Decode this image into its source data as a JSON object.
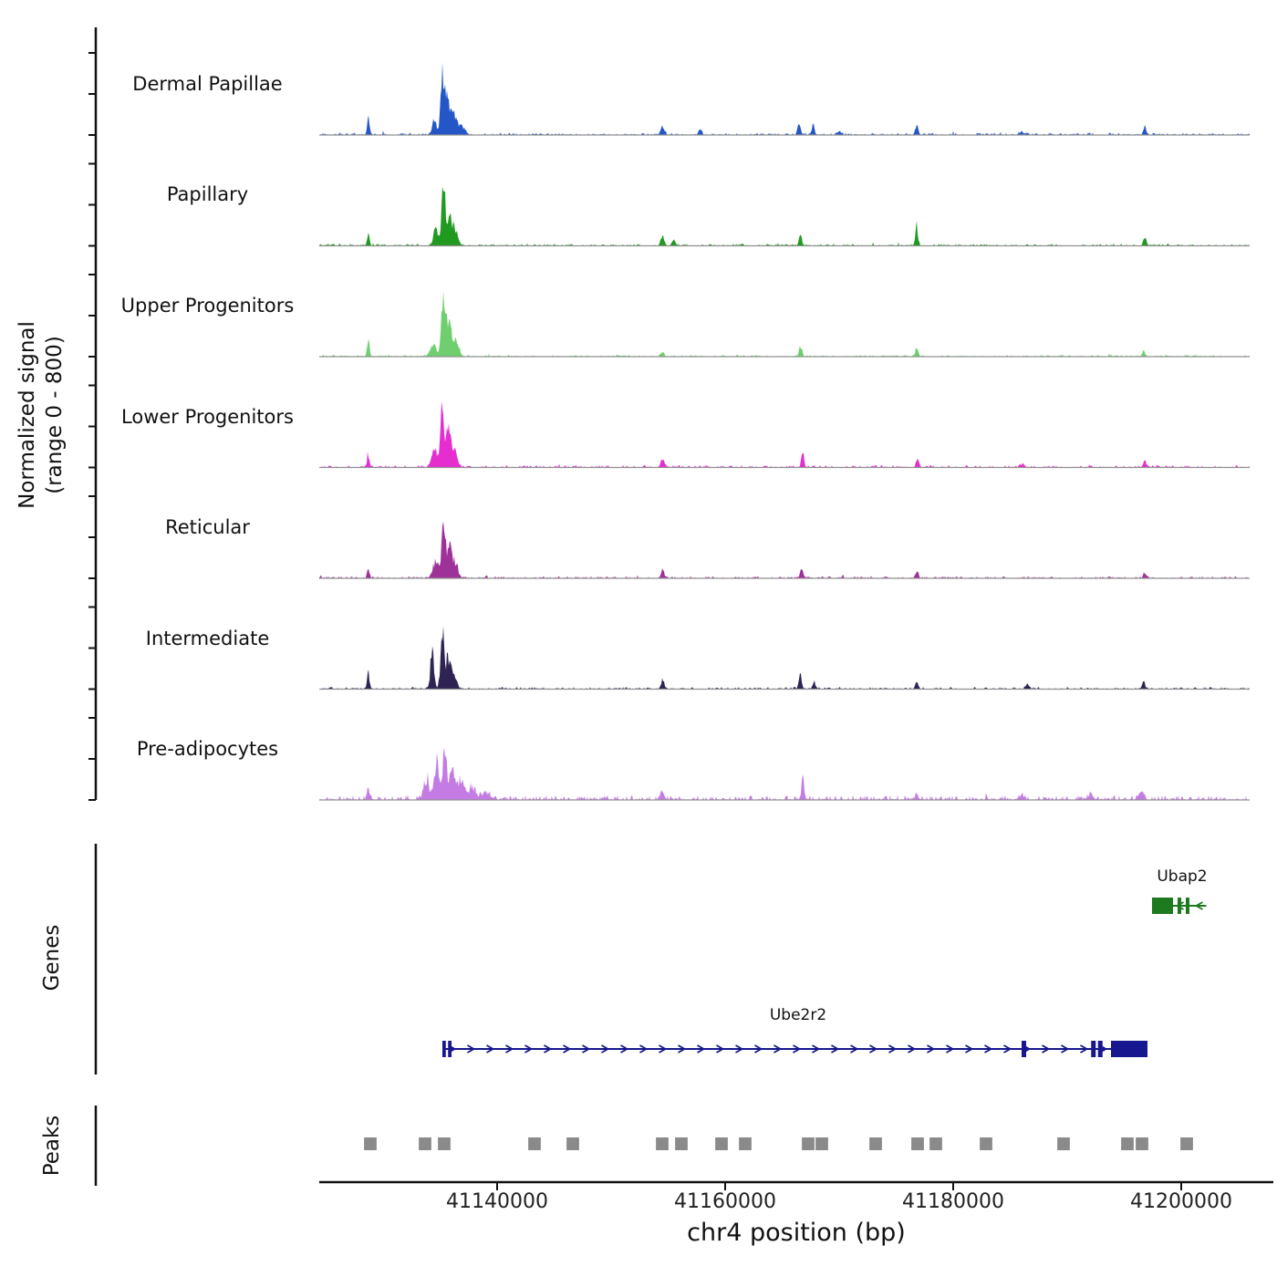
{
  "figure": {
    "y_axis_label_line1": "Normalized signal",
    "y_axis_label_line2": "(range 0 - 800)",
    "x_axis_title": "chr4 position (bp)",
    "genes_section_label": "Genes",
    "peaks_section_label": "Peaks"
  },
  "chart_data": {
    "type": "area",
    "title": "",
    "xlabel": "chr4 position (bp)",
    "ylabel": "Normalized signal (range 0 - 800)",
    "x_domain_bp": [
      41124400,
      41206000
    ],
    "ylim": [
      0,
      800
    ],
    "grid": false,
    "x_ticks": [
      {
        "pos": 41140000,
        "label": "41140000"
      },
      {
        "pos": 41160000,
        "label": "41160000"
      },
      {
        "pos": 41180000,
        "label": "41180000"
      },
      {
        "pos": 41200000,
        "label": "41200000"
      }
    ],
    "tracks": [
      {
        "name": "Dermal Papillae",
        "color": "#2456c8",
        "noise": 7,
        "peaks": [
          [
            41128700,
            200,
            100
          ],
          [
            41134500,
            180,
            200
          ],
          [
            41135200,
            760,
            150
          ],
          [
            41135600,
            420,
            180
          ],
          [
            41136100,
            260,
            250
          ],
          [
            41136800,
            120,
            300
          ],
          [
            41154500,
            110,
            150
          ],
          [
            41157800,
            60,
            150
          ],
          [
            41166500,
            150,
            120
          ],
          [
            41167700,
            130,
            120
          ],
          [
            41170000,
            40,
            200
          ],
          [
            41176800,
            110,
            130
          ],
          [
            41186000,
            35,
            200
          ],
          [
            41196800,
            90,
            130
          ]
        ]
      },
      {
        "name": "Papillary",
        "color": "#219a21",
        "noise": 7,
        "peaks": [
          [
            41128700,
            170,
            100
          ],
          [
            41134600,
            200,
            200
          ],
          [
            41135300,
            740,
            160
          ],
          [
            41135800,
            380,
            200
          ],
          [
            41136300,
            220,
            250
          ],
          [
            41154500,
            120,
            150
          ],
          [
            41155500,
            80,
            150
          ],
          [
            41166600,
            120,
            130
          ],
          [
            41176800,
            280,
            110
          ],
          [
            41196800,
            100,
            130
          ]
        ]
      },
      {
        "name": "Upper Progenitors",
        "color": "#6fcf6f",
        "noise": 6,
        "peaks": [
          [
            41128700,
            210,
            100
          ],
          [
            41134400,
            150,
            250
          ],
          [
            41135300,
            790,
            170
          ],
          [
            41135800,
            420,
            200
          ],
          [
            41136400,
            200,
            250
          ],
          [
            41154500,
            60,
            150
          ],
          [
            41166600,
            130,
            130
          ],
          [
            41176800,
            100,
            130
          ],
          [
            41196700,
            60,
            130
          ]
        ]
      },
      {
        "name": "Lower Progenitors",
        "color": "#e62ed0",
        "noise": 8,
        "peaks": [
          [
            41128700,
            160,
            110
          ],
          [
            41134500,
            220,
            250
          ],
          [
            41135200,
            700,
            170
          ],
          [
            41135700,
            400,
            200
          ],
          [
            41136200,
            250,
            250
          ],
          [
            41154500,
            100,
            150
          ],
          [
            41166800,
            190,
            120
          ],
          [
            41176900,
            90,
            130
          ],
          [
            41186000,
            40,
            200
          ],
          [
            41196800,
            80,
            130
          ]
        ]
      },
      {
        "name": "Reticular",
        "color": "#9e3299",
        "noise": 7,
        "peaks": [
          [
            41128700,
            130,
            100
          ],
          [
            41134600,
            200,
            250
          ],
          [
            41135300,
            620,
            170
          ],
          [
            41135800,
            350,
            200
          ],
          [
            41136300,
            200,
            250
          ],
          [
            41154500,
            90,
            150
          ],
          [
            41166700,
            120,
            130
          ],
          [
            41176800,
            80,
            130
          ],
          [
            41196800,
            60,
            130
          ]
        ]
      },
      {
        "name": "Intermediate",
        "color": "#2e2352",
        "noise": 7,
        "peaks": [
          [
            41128700,
            180,
            100
          ],
          [
            41134300,
            480,
            150
          ],
          [
            41135200,
            660,
            160
          ],
          [
            41135700,
            380,
            180
          ],
          [
            41136200,
            220,
            220
          ],
          [
            41154500,
            100,
            150
          ],
          [
            41166600,
            170,
            130
          ],
          [
            41167800,
            90,
            130
          ],
          [
            41176800,
            70,
            130
          ],
          [
            41186500,
            50,
            150
          ],
          [
            41196700,
            90,
            130
          ]
        ]
      },
      {
        "name": "Pre-adipocytes",
        "color": "#c47ce4",
        "noise": 16,
        "peaks": [
          [
            41128700,
            150,
            110
          ],
          [
            41133800,
            250,
            250
          ],
          [
            41134700,
            450,
            200
          ],
          [
            41135400,
            620,
            180
          ],
          [
            41136000,
            380,
            220
          ],
          [
            41136800,
            250,
            300
          ],
          [
            41137800,
            150,
            300
          ],
          [
            41139000,
            80,
            400
          ],
          [
            41154500,
            70,
            200
          ],
          [
            41166800,
            280,
            110
          ],
          [
            41176800,
            60,
            150
          ],
          [
            41186000,
            50,
            250
          ],
          [
            41192000,
            60,
            250
          ],
          [
            41196500,
            100,
            200
          ]
        ]
      }
    ],
    "genes": [
      {
        "name": "Ubap2",
        "strand": "-",
        "color": "#1e7a1e",
        "start": 41197440,
        "end": 41202200,
        "exons": [
          [
            41197440,
            41199280
          ],
          [
            41199680,
            41200000
          ],
          [
            41200400,
            41200720
          ]
        ]
      },
      {
        "name": "Ube2r2",
        "strand": "+",
        "color": "#17178f",
        "start": 41135200,
        "end": 41197040,
        "exons": [
          [
            41135200,
            41135500
          ],
          [
            41135700,
            41136000
          ],
          [
            41186000,
            41186400
          ],
          [
            41192100,
            41192500
          ],
          [
            41192700,
            41193100
          ],
          [
            41193840,
            41197040
          ]
        ]
      }
    ],
    "peak_boxes": {
      "color": "#8a8a8a",
      "width_bp": 1100,
      "centers": [
        41128880,
        41133680,
        41135360,
        41143280,
        41146640,
        41154480,
        41156160,
        41159680,
        41161760,
        41167280,
        41168480,
        41173200,
        41176880,
        41178480,
        41182880,
        41189680,
        41195280,
        41196560,
        41200480
      ]
    }
  }
}
